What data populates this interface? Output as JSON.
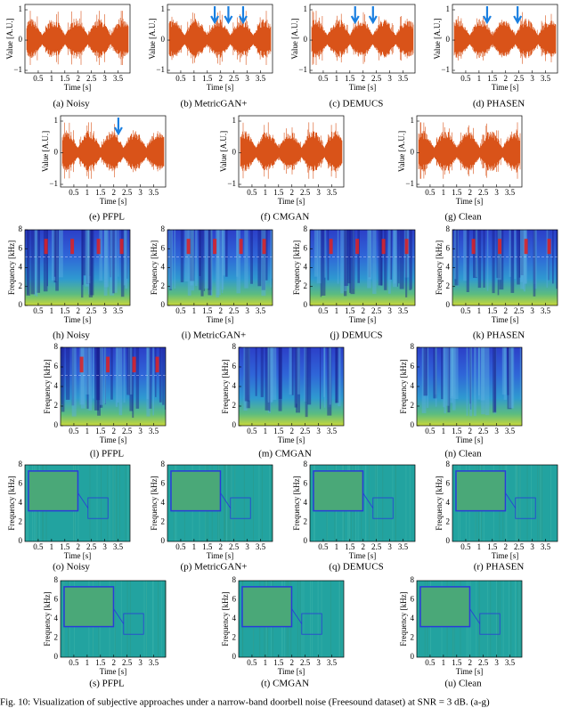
{
  "panels": [
    {
      "caption": "(a) Noisy",
      "kind": "waveform"
    },
    {
      "caption": "(b) MetricGAN+",
      "kind": "waveform"
    },
    {
      "caption": "(c) DEMUCS",
      "kind": "waveform"
    },
    {
      "caption": "(d) PHASEN",
      "kind": "waveform"
    },
    {
      "caption": "(e) PFPL",
      "kind": "waveform"
    },
    {
      "caption": "(f) CMGAN",
      "kind": "waveform"
    },
    {
      "caption": "(g) Clean",
      "kind": "waveform"
    },
    {
      "caption": "(h) Noisy",
      "kind": "spectrogram"
    },
    {
      "caption": "(i) MetricGAN+",
      "kind": "spectrogram"
    },
    {
      "caption": "(j) DEMUCS",
      "kind": "spectrogram"
    },
    {
      "caption": "(k) PHASEN",
      "kind": "spectrogram"
    },
    {
      "caption": "(l) PFPL",
      "kind": "spectrogram"
    },
    {
      "caption": "(m) CMGAN",
      "kind": "spectrogram"
    },
    {
      "caption": "(n) Clean",
      "kind": "spectrogram"
    },
    {
      "caption": "(o) Noisy",
      "kind": "residual"
    },
    {
      "caption": "(p) MetricGAN+",
      "kind": "residual"
    },
    {
      "caption": "(q) DEMUCS",
      "kind": "residual"
    },
    {
      "caption": "(r) PHASEN",
      "kind": "residual"
    },
    {
      "caption": "(s) PFPL",
      "kind": "residual"
    },
    {
      "caption": "(t) CMGAN",
      "kind": "residual"
    },
    {
      "caption": "(u) Clean",
      "kind": "residual"
    }
  ],
  "time_axis": {
    "label": "Time [s]",
    "ticks": [
      "0.5",
      "1",
      "1.5",
      "2",
      "2.5",
      "3",
      "3.5"
    ]
  },
  "waveform_axis": {
    "label": "Value [A.U.]",
    "ticks": [
      "1",
      "0",
      "−1"
    ]
  },
  "frequency_axis": {
    "label": "Frequency [kHz]",
    "ticks": [
      "0",
      "2",
      "4",
      "6",
      "8"
    ]
  },
  "figure_caption": "Fig. 10: Visualization of subjective approaches under a narrow-band doorbell noise (Freesound dataset) at SNR = 3 dB. (a-g)"
}
